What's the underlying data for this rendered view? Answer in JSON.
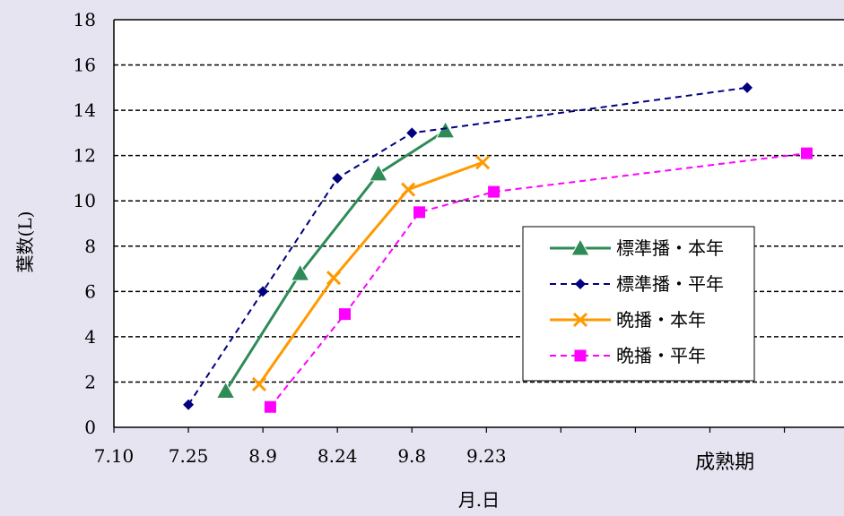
{
  "chart_data": {
    "type": "line",
    "ylabel": "葉数(L)",
    "xlabel": "月.日",
    "ylim": [
      0,
      18
    ],
    "yticks": [
      0,
      2,
      4,
      6,
      8,
      10,
      12,
      14,
      16,
      18
    ],
    "x_domain": [
      0,
      9.8
    ],
    "xticks": [
      {
        "label": "7.10",
        "x": 0
      },
      {
        "label": "7.25",
        "x": 1
      },
      {
        "label": "8.9",
        "x": 2
      },
      {
        "label": "8.24",
        "x": 3
      },
      {
        "label": "9.8",
        "x": 4
      },
      {
        "label": "9.23",
        "x": 5
      },
      {
        "label": "",
        "x": 6
      },
      {
        "label": "",
        "x": 7
      },
      {
        "label": "",
        "x": 8
      },
      {
        "label": "",
        "x": 9
      }
    ],
    "extra_x_label": {
      "label": "成熟期",
      "x": 8.2
    },
    "grid": "horizontal dashed",
    "legend_position": "right",
    "series": [
      {
        "name": "標準播・本年",
        "color": "#2e8b57",
        "marker": "triangle",
        "dash": false,
        "points": [
          [
            1.5,
            1.6
          ],
          [
            2.5,
            6.8
          ],
          [
            3.55,
            11.2
          ],
          [
            4.45,
            13.1
          ]
        ]
      },
      {
        "name": "標準播・平年",
        "color": "#000080",
        "marker": "diamond",
        "dash": true,
        "points": [
          [
            1.0,
            1.0
          ],
          [
            2.0,
            6.0
          ],
          [
            3.0,
            11.0
          ],
          [
            4.0,
            13.0
          ],
          [
            8.5,
            15.0
          ]
        ]
      },
      {
        "name": "晩播・本年",
        "color": "#ff9900",
        "marker": "x",
        "dash": false,
        "points": [
          [
            1.95,
            1.9
          ],
          [
            2.95,
            6.6
          ],
          [
            3.95,
            10.5
          ],
          [
            4.95,
            11.7
          ]
        ]
      },
      {
        "name": "晩播・平年",
        "color": "#ff00ff",
        "marker": "square",
        "dash": true,
        "points": [
          [
            2.1,
            0.9
          ],
          [
            3.1,
            5.0
          ],
          [
            4.1,
            9.5
          ],
          [
            5.1,
            10.4
          ],
          [
            9.3,
            12.1
          ]
        ]
      }
    ]
  }
}
